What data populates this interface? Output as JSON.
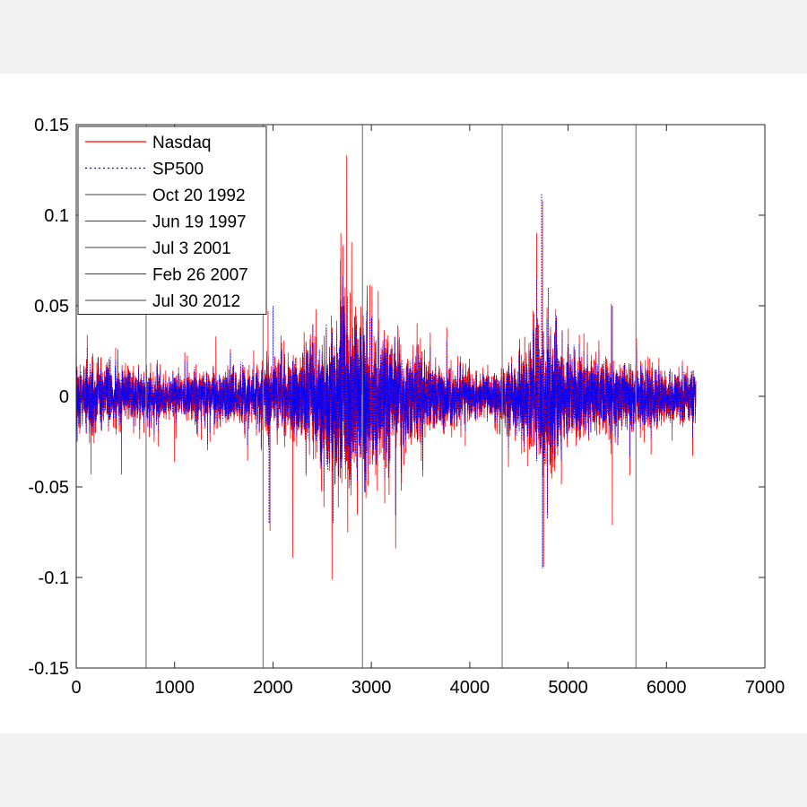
{
  "chart_data": {
    "type": "line",
    "title": "",
    "xlabel": "",
    "ylabel": "",
    "xlim": [
      0,
      7000
    ],
    "ylim": [
      -0.15,
      0.15
    ],
    "xticks": [
      0,
      1000,
      2000,
      3000,
      4000,
      5000,
      6000,
      7000
    ],
    "xtick_labels": [
      "0",
      "1000",
      "2000",
      "3000",
      "4000",
      "5000",
      "6000",
      "7000"
    ],
    "yticks": [
      -0.15,
      -0.1,
      -0.05,
      0,
      0.05,
      0.1,
      0.15
    ],
    "ytick_labels": [
      "-0.15",
      "-0.1",
      "-0.05",
      "0",
      "0.05",
      "0.1",
      "0.15"
    ],
    "grid": false,
    "legend_position": "top-left",
    "n_points": 6300,
    "series": [
      {
        "name": "Nasdaq",
        "color": "#ff0000",
        "style": "solid",
        "spikes": [
          {
            "x": 150,
            "y": -0.043
          },
          {
            "x": 460,
            "y": -0.043
          },
          {
            "x": 1000,
            "y": -0.036
          },
          {
            "x": 1420,
            "y": 0.033
          },
          {
            "x": 1950,
            "y": 0.047
          },
          {
            "x": 1970,
            "y": -0.074
          },
          {
            "x": 2200,
            "y": -0.089
          },
          {
            "x": 2440,
            "y": 0.048
          },
          {
            "x": 2600,
            "y": -0.101
          },
          {
            "x": 2690,
            "y": 0.09
          },
          {
            "x": 2750,
            "y": 0.133
          },
          {
            "x": 2760,
            "y": -0.075
          },
          {
            "x": 2800,
            "y": 0.085
          },
          {
            "x": 3070,
            "y": 0.058
          },
          {
            "x": 4740,
            "y": 0.108
          },
          {
            "x": 4750,
            "y": -0.094
          },
          {
            "x": 5440,
            "y": 0.051
          },
          {
            "x": 5450,
            "y": -0.071
          }
        ]
      },
      {
        "name": "SP500",
        "color": "#0000ff",
        "style": "dotted",
        "spikes": [
          {
            "x": 10,
            "y": -0.025
          },
          {
            "x": 1960,
            "y": -0.07
          },
          {
            "x": 2000,
            "y": 0.05
          },
          {
            "x": 2610,
            "y": -0.07
          },
          {
            "x": 2720,
            "y": 0.05
          },
          {
            "x": 4730,
            "y": 0.112
          },
          {
            "x": 4740,
            "y": -0.095
          },
          {
            "x": 4800,
            "y": 0.06
          },
          {
            "x": 5450,
            "y": 0.05
          }
        ]
      }
    ],
    "volatility_envelope": [
      {
        "x": 0,
        "sd": 0.007
      },
      {
        "x": 200,
        "sd": 0.008
      },
      {
        "x": 500,
        "sd": 0.006
      },
      {
        "x": 900,
        "sd": 0.0055
      },
      {
        "x": 1500,
        "sd": 0.006
      },
      {
        "x": 1900,
        "sd": 0.008
      },
      {
        "x": 2100,
        "sd": 0.009
      },
      {
        "x": 2400,
        "sd": 0.013
      },
      {
        "x": 2600,
        "sd": 0.02
      },
      {
        "x": 2800,
        "sd": 0.022
      },
      {
        "x": 3000,
        "sd": 0.017
      },
      {
        "x": 3200,
        "sd": 0.014
      },
      {
        "x": 3500,
        "sd": 0.01
      },
      {
        "x": 3900,
        "sd": 0.006
      },
      {
        "x": 4300,
        "sd": 0.0055
      },
      {
        "x": 4500,
        "sd": 0.01
      },
      {
        "x": 4700,
        "sd": 0.018
      },
      {
        "x": 4800,
        "sd": 0.018
      },
      {
        "x": 5000,
        "sd": 0.011
      },
      {
        "x": 5300,
        "sd": 0.009
      },
      {
        "x": 5600,
        "sd": 0.008
      },
      {
        "x": 6000,
        "sd": 0.006
      },
      {
        "x": 6300,
        "sd": 0.006
      }
    ],
    "vlines": [
      {
        "name": "Oct 20 1992",
        "x": 710,
        "color": "#808080"
      },
      {
        "name": "Jun 19 1997",
        "x": 1900,
        "color": "#808080"
      },
      {
        "name": "Jul 3 2001",
        "x": 2910,
        "color": "#808080"
      },
      {
        "name": "Feb 26 2007",
        "x": 4330,
        "color": "#808080"
      },
      {
        "name": "Jul 30 2012",
        "x": 5690,
        "color": "#808080"
      }
    ]
  }
}
